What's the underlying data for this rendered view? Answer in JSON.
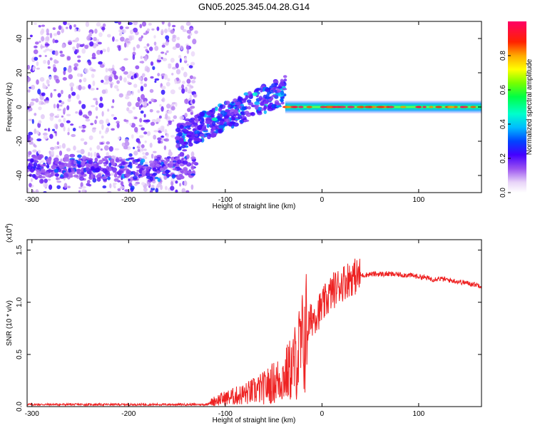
{
  "figure": {
    "title": "GN05.2025.345.04.28.G14"
  },
  "chart_data": [
    {
      "type": "heatmap",
      "name": "spectrogram",
      "xlabel": "Height of straight line (km)",
      "ylabel": "Frequency (Hz)",
      "xlim": [
        -305,
        165
      ],
      "ylim": [
        -50,
        50
      ],
      "xticks": [
        -300,
        -200,
        -100,
        0,
        100
      ],
      "yticks": [
        -40,
        -20,
        0,
        20,
        40
      ],
      "colorbar": {
        "label": "Normalized spectral amplitude",
        "range": [
          0,
          1
        ],
        "ticks": [
          0.0,
          0.2,
          0.4,
          0.6,
          0.8
        ],
        "colormap": "rainbow (white-purple-blue-cyan-green-yellow-red-magenta)"
      },
      "features": [
        {
          "desc": "noise band",
          "x": [
            -305,
            -130
          ],
          "freq": [
            -40,
            -28
          ],
          "amplitude": 0.2
        },
        {
          "desc": "scattered noise",
          "x": [
            -305,
            -130
          ],
          "freq": [
            -50,
            50
          ],
          "amplitude": 0.1
        },
        {
          "desc": "rising tone",
          "x_start": -150,
          "freq_start": -18,
          "x_end": -38,
          "freq_end": 10,
          "amplitude": 0.3
        },
        {
          "desc": "carrier line",
          "x": [
            -38,
            165
          ],
          "freq": 0,
          "amplitude": 0.5
        }
      ]
    },
    {
      "type": "line",
      "name": "snr",
      "xlabel": "Height of straight line (km)",
      "ylabel": "SNR (10 * v/v)",
      "yscale_label": "(x10",
      "yscale_exp": "4",
      "xlim": [
        -305,
        165
      ],
      "ylim": [
        0,
        1.6
      ],
      "xticks": [
        -300,
        -200,
        -100,
        0,
        100
      ],
      "yticks": [
        0.0,
        0.5,
        1.0,
        1.5
      ],
      "color": "#ee2222",
      "x": [
        -305,
        -250,
        -200,
        -150,
        -120,
        -110,
        -100,
        -80,
        -60,
        -40,
        -30,
        -20,
        -15,
        -10,
        0,
        10,
        20,
        30,
        50,
        70,
        90,
        105,
        115,
        120,
        140,
        165
      ],
      "y": [
        0.02,
        0.02,
        0.02,
        0.02,
        0.02,
        0.06,
        0.08,
        0.12,
        0.18,
        0.28,
        0.38,
        0.6,
        0.75,
        0.85,
        0.95,
        1.1,
        1.18,
        1.24,
        1.27,
        1.27,
        1.26,
        1.24,
        1.22,
        1.23,
        1.2,
        1.16
      ]
    }
  ]
}
